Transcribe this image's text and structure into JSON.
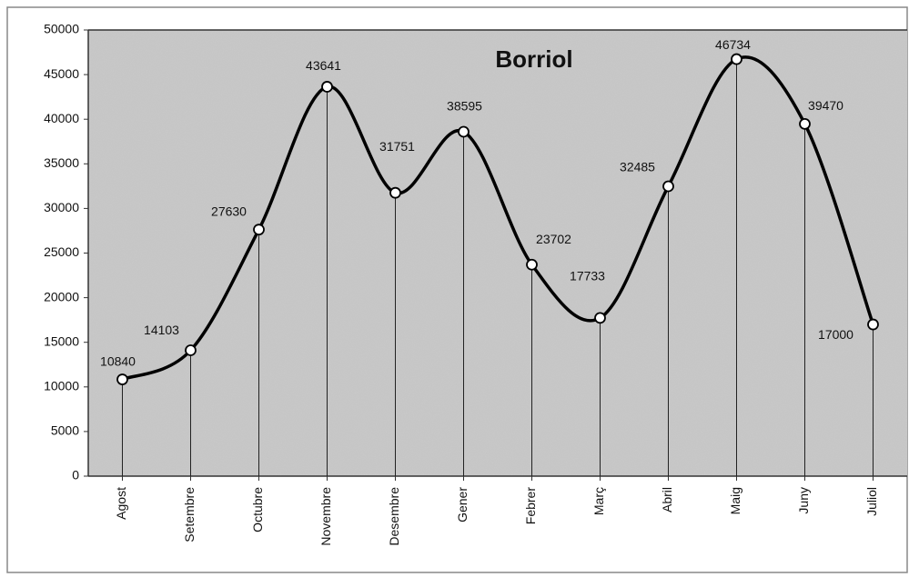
{
  "chart_data": {
    "type": "line",
    "title": "Borriol",
    "categories": [
      "Agost",
      "Setembre",
      "Octubre",
      "Novembre",
      "Desembre",
      "Gener",
      "Febrer",
      "Març",
      "Abril",
      "Maig",
      "Juny",
      "Juliol"
    ],
    "values": [
      10840,
      14103,
      27630,
      43641,
      31751,
      38595,
      23702,
      17733,
      32485,
      46734,
      39470,
      17000
    ],
    "color": "#000000",
    "smooth": true,
    "drop_lines": true,
    "ylim": [
      0,
      50000
    ],
    "yticks": [
      0,
      5000,
      10000,
      15000,
      20000,
      25000,
      30000,
      35000,
      40000,
      45000,
      50000
    ]
  }
}
